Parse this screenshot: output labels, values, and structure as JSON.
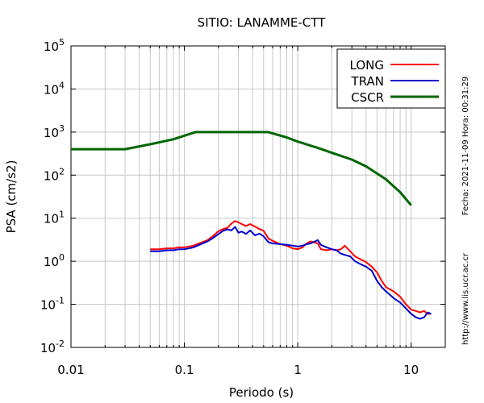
{
  "chart_data": {
    "type": "line",
    "title": "SITIO: LANAMME-CTT",
    "xlabel": "Periodo (s)",
    "ylabel": "PSA (cm/s2)",
    "x_scale": "log",
    "y_scale": "log",
    "xlim": [
      0.01,
      20
    ],
    "ylim": [
      0.01,
      100000
    ],
    "x_ticks": [
      {
        "value": 0.01,
        "label": "0.01"
      },
      {
        "value": 0.1,
        "label": "0.1"
      },
      {
        "value": 1,
        "label": "1"
      },
      {
        "value": 10,
        "label": "10"
      }
    ],
    "y_ticks": [
      {
        "value": 0.01,
        "base": "10",
        "exp": "-2"
      },
      {
        "value": 0.1,
        "base": "10",
        "exp": "-1"
      },
      {
        "value": 1,
        "base": "10",
        "exp": "0"
      },
      {
        "value": 10,
        "base": "10",
        "exp": "1"
      },
      {
        "value": 100,
        "base": "10",
        "exp": "2"
      },
      {
        "value": 1000,
        "base": "10",
        "exp": "3"
      },
      {
        "value": 10000,
        "base": "10",
        "exp": "4"
      },
      {
        "value": 100000,
        "base": "10",
        "exp": "5"
      }
    ],
    "grid": true,
    "legend_position": "top-right",
    "series": [
      {
        "name": "LONG",
        "color": "#ff0000",
        "points": [
          [
            0.05,
            1.9
          ],
          [
            0.06,
            1.9
          ],
          [
            0.07,
            2.0
          ],
          [
            0.08,
            2.0
          ],
          [
            0.09,
            2.1
          ],
          [
            0.1,
            2.1
          ],
          [
            0.11,
            2.2
          ],
          [
            0.12,
            2.3
          ],
          [
            0.14,
            2.7
          ],
          [
            0.16,
            3.1
          ],
          [
            0.18,
            3.9
          ],
          [
            0.2,
            5.0
          ],
          [
            0.22,
            5.6
          ],
          [
            0.24,
            6.0
          ],
          [
            0.26,
            7.5
          ],
          [
            0.28,
            8.6
          ],
          [
            0.3,
            8.0
          ],
          [
            0.32,
            7.3
          ],
          [
            0.35,
            6.6
          ],
          [
            0.38,
            7.3
          ],
          [
            0.42,
            6.4
          ],
          [
            0.46,
            5.6
          ],
          [
            0.5,
            5.1
          ],
          [
            0.55,
            3.4
          ],
          [
            0.6,
            3.0
          ],
          [
            0.7,
            2.5
          ],
          [
            0.8,
            2.3
          ],
          [
            0.9,
            2.0
          ],
          [
            1.0,
            1.9
          ],
          [
            1.1,
            2.1
          ],
          [
            1.2,
            2.6
          ],
          [
            1.3,
            2.9
          ],
          [
            1.5,
            2.6
          ],
          [
            1.6,
            1.9
          ],
          [
            1.8,
            1.8
          ],
          [
            2.0,
            1.9
          ],
          [
            2.2,
            1.8
          ],
          [
            2.4,
            1.9
          ],
          [
            2.6,
            2.3
          ],
          [
            2.9,
            1.7
          ],
          [
            3.2,
            1.3
          ],
          [
            3.6,
            1.1
          ],
          [
            4.0,
            0.95
          ],
          [
            4.5,
            0.75
          ],
          [
            5.0,
            0.55
          ],
          [
            5.5,
            0.35
          ],
          [
            6.0,
            0.25
          ],
          [
            7.0,
            0.2
          ],
          [
            8.0,
            0.15
          ],
          [
            9.0,
            0.1
          ],
          [
            10.0,
            0.075
          ],
          [
            11.0,
            0.07
          ],
          [
            12.0,
            0.065
          ],
          [
            13.0,
            0.07
          ],
          [
            14.0,
            0.06
          ],
          [
            15.0,
            0.06
          ]
        ]
      },
      {
        "name": "TRAN",
        "color": "#0000cc",
        "points": [
          [
            0.05,
            1.7
          ],
          [
            0.06,
            1.7
          ],
          [
            0.07,
            1.8
          ],
          [
            0.08,
            1.8
          ],
          [
            0.09,
            1.9
          ],
          [
            0.1,
            1.9
          ],
          [
            0.11,
            2.0
          ],
          [
            0.12,
            2.1
          ],
          [
            0.14,
            2.5
          ],
          [
            0.16,
            2.9
          ],
          [
            0.18,
            3.5
          ],
          [
            0.2,
            4.3
          ],
          [
            0.22,
            5.1
          ],
          [
            0.24,
            5.5
          ],
          [
            0.26,
            5.2
          ],
          [
            0.28,
            6.3
          ],
          [
            0.3,
            4.6
          ],
          [
            0.32,
            4.9
          ],
          [
            0.35,
            4.3
          ],
          [
            0.38,
            5.2
          ],
          [
            0.42,
            4.0
          ],
          [
            0.46,
            4.4
          ],
          [
            0.5,
            3.8
          ],
          [
            0.55,
            2.8
          ],
          [
            0.6,
            2.6
          ],
          [
            0.7,
            2.5
          ],
          [
            0.8,
            2.4
          ],
          [
            0.9,
            2.3
          ],
          [
            1.0,
            2.2
          ],
          [
            1.1,
            2.3
          ],
          [
            1.2,
            2.5
          ],
          [
            1.3,
            2.6
          ],
          [
            1.5,
            3.1
          ],
          [
            1.6,
            2.4
          ],
          [
            1.8,
            2.1
          ],
          [
            2.0,
            1.9
          ],
          [
            2.2,
            1.8
          ],
          [
            2.4,
            1.5
          ],
          [
            2.6,
            1.4
          ],
          [
            2.9,
            1.3
          ],
          [
            3.2,
            1.0
          ],
          [
            3.6,
            0.85
          ],
          [
            4.0,
            0.75
          ],
          [
            4.5,
            0.6
          ],
          [
            5.0,
            0.35
          ],
          [
            5.5,
            0.25
          ],
          [
            6.0,
            0.2
          ],
          [
            7.0,
            0.14
          ],
          [
            8.0,
            0.11
          ],
          [
            9.0,
            0.08
          ],
          [
            10.0,
            0.06
          ],
          [
            11.0,
            0.05
          ],
          [
            12.0,
            0.046
          ],
          [
            13.0,
            0.05
          ],
          [
            14.0,
            0.065
          ],
          [
            15.0,
            0.06
          ]
        ]
      },
      {
        "name": "CSCR",
        "color": "#006600",
        "points": [
          [
            0.01,
            400
          ],
          [
            0.03,
            400
          ],
          [
            0.05,
            520
          ],
          [
            0.08,
            680
          ],
          [
            0.125,
            1000
          ],
          [
            0.55,
            1000
          ],
          [
            0.8,
            750
          ],
          [
            1.0,
            600
          ],
          [
            1.5,
            430
          ],
          [
            2.0,
            330
          ],
          [
            3.0,
            230
          ],
          [
            4.0,
            160
          ],
          [
            6.0,
            80
          ],
          [
            8.0,
            40
          ],
          [
            10.0,
            20
          ]
        ]
      }
    ],
    "annotations": [
      "Fecha: 2021-11-09  Hora: 00:31:29",
      "http://www.lis.ucr.ac.cr"
    ]
  }
}
